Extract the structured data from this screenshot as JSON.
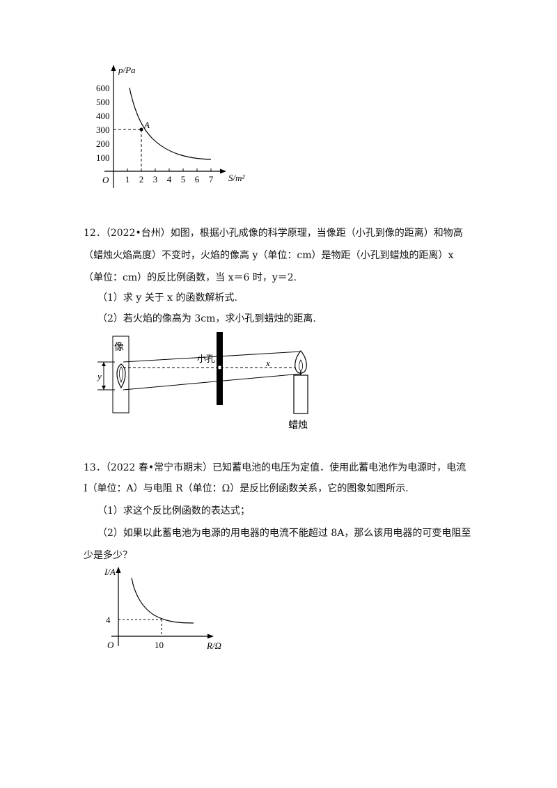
{
  "figure_pressure": {
    "y_axis_label": "p/Pa",
    "x_axis_label": "S/m²",
    "origin": "O",
    "y_ticks": [
      "100",
      "200",
      "300",
      "400",
      "500",
      "600"
    ],
    "x_ticks": [
      "1",
      "2",
      "3",
      "4",
      "5",
      "6",
      "7"
    ],
    "point_label": "A"
  },
  "problem12": {
    "line1": "12．（2022•台州）如图，根据小孔成像的科学原理，当像距（小孔到像的距离）和物高",
    "line2": "（蜡烛火焰高度）不变时，火焰的像高 y（单位：cm）是物距（小孔到蜡烛的距离）x",
    "line3": "（单位：cm）的反比例函数，当 x＝6 时，y＝2.",
    "q1": "（1）求 y 关于 x 的函数解析式.",
    "q2": "（2）若火焰的像高为 3cm，求小孔到蜡烛的距离."
  },
  "figure_pinhole": {
    "image_label": "像",
    "hole_label": "小孔",
    "x_label": "x",
    "y_label": "y",
    "candle_label": "蜡烛"
  },
  "problem13": {
    "line1": "13．（2022 春•常宁市期末）已知蓄电池的电压为定值．使用此蓄电池作为电源时，电流",
    "line2": "I（单位：A）与电阻 R（单位：Ω）是反比例函数关系，它的图象如图所示.",
    "q1": "（1）求这个反比例函数的表达式；",
    "q2_line1": "（2）如果以此蓄电池为电源的用电器的电流不能超过 8A，那么该用电器的可变电阻至",
    "q2_line2": "少是多少？"
  },
  "figure_current": {
    "y_axis_label": "I/A",
    "x_axis_label": "R/Ω",
    "origin": "O",
    "y_tick": "4",
    "x_tick": "10"
  }
}
